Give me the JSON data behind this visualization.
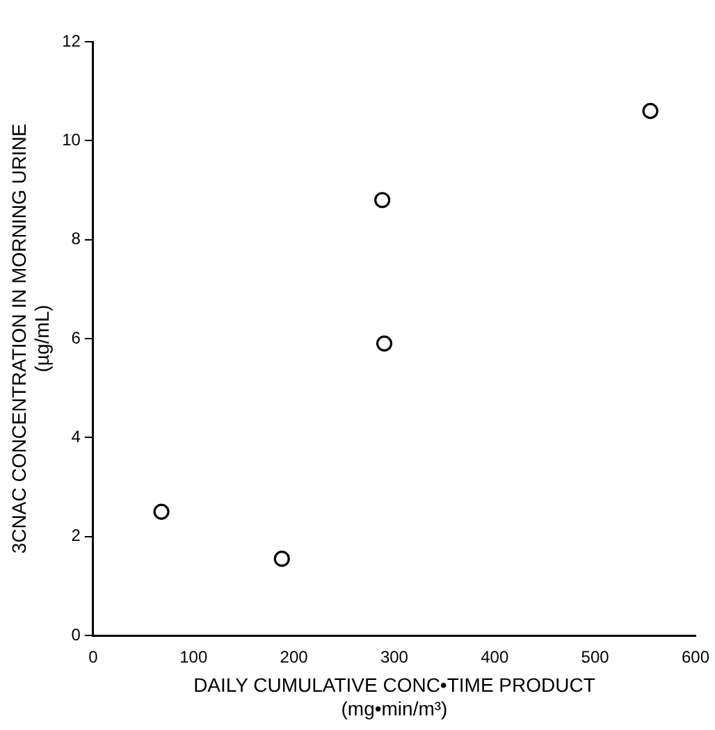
{
  "chart_data": {
    "type": "scatter",
    "xlabel": "DAILY CUMULATIVE CONC•TIME PRODUCT\n(mg•min/m³)",
    "ylabel": "3CNAC CONCENTRATION IN MORNING URINE\n(µg/mL)",
    "x": [
      68,
      188,
      288,
      290,
      555
    ],
    "series": [
      {
        "color": "#000000",
        "values": [
          2.5,
          1.55,
          8.8,
          5.9,
          10.6
        ]
      }
    ],
    "xlim": [
      0,
      600
    ],
    "xticks": [
      0,
      100,
      200,
      300,
      400,
      500,
      600
    ],
    "ylim": [
      0,
      12
    ],
    "yticks": [
      0,
      2,
      4,
      6,
      8,
      10,
      12
    ],
    "grid": false,
    "legend": false,
    "marker": "circle"
  }
}
